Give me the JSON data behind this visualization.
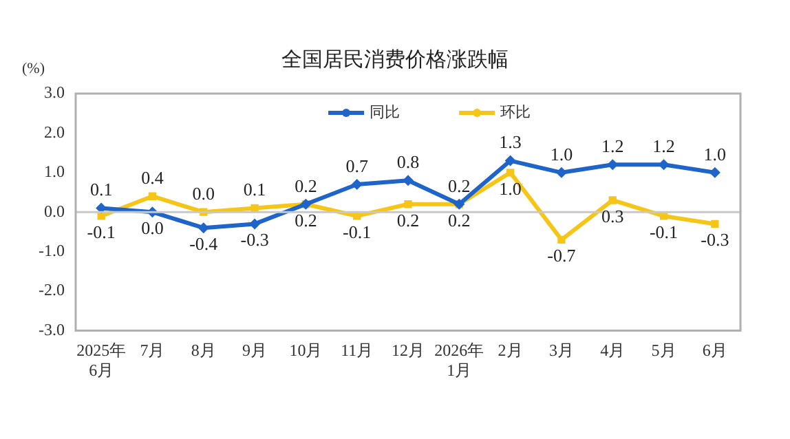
{
  "chart_data": {
    "type": "line",
    "title": "全国居民消费价格涨跌幅",
    "ylabel": "(%)",
    "categories": [
      "2025年\n6月",
      "7月",
      "8月",
      "9月",
      "10月",
      "11月",
      "12月",
      "2026年\n1月",
      "2月",
      "3月",
      "4月",
      "5月",
      "6月"
    ],
    "series": [
      {
        "name": "同比",
        "color": "#1f64c8",
        "marker": "diamond",
        "values": [
          0.1,
          0.0,
          -0.4,
          -0.3,
          0.2,
          0.7,
          0.8,
          0.2,
          1.3,
          1.0,
          1.2,
          1.2,
          1.0
        ],
        "value_labels": [
          "0.1",
          "0.0",
          "-0.4",
          "-0.3",
          "0.2",
          "0.7",
          "0.8",
          "0.2",
          "1.3",
          "1.0",
          "1.2",
          "1.2",
          "1.0"
        ]
      },
      {
        "name": "环比",
        "color": "#f5c518",
        "marker": "square",
        "values": [
          -0.1,
          0.4,
          0.0,
          0.1,
          0.2,
          -0.1,
          0.2,
          0.2,
          1.0,
          -0.7,
          0.3,
          -0.1,
          -0.3
        ],
        "value_labels": [
          "-0.1",
          "0.4",
          "0.0",
          "0.1",
          "0.2",
          "-0.1",
          "0.2",
          "0.2",
          "1.0",
          "-0.7",
          "0.3",
          "-0.1",
          "-0.3"
        ]
      }
    ],
    "ylim": [
      -3,
      3
    ],
    "yticks": [
      {
        "value": -3,
        "label": "-3.0"
      },
      {
        "value": -2,
        "label": "-2.0"
      },
      {
        "value": -1,
        "label": "-1.0"
      },
      {
        "value": 0,
        "label": "0.0"
      },
      {
        "value": 1,
        "label": "1.0"
      },
      {
        "value": 2,
        "label": "2.0"
      },
      {
        "value": 3,
        "label": "3.0"
      }
    ],
    "ref_lines": [
      {
        "axis": "y",
        "value": 0,
        "color": "#c8c8c8"
      }
    ],
    "grid": false,
    "legend": "top",
    "line_style": "solid"
  }
}
